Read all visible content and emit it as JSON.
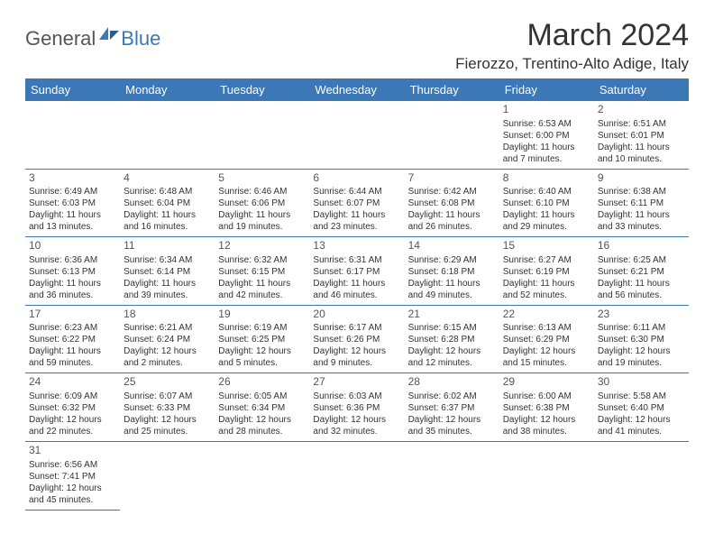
{
  "logo": {
    "part1": "General",
    "part2": "Blue"
  },
  "title": "March 2024",
  "location": "Fierozzo, Trentino-Alto Adige, Italy",
  "colors": {
    "headerBg": "#3b78b5",
    "headerText": "#ffffff",
    "border": "#3b78b5",
    "text": "#333333"
  },
  "dayHeaders": [
    "Sunday",
    "Monday",
    "Tuesday",
    "Wednesday",
    "Thursday",
    "Friday",
    "Saturday"
  ],
  "weeks": [
    [
      null,
      null,
      null,
      null,
      null,
      {
        "n": "1",
        "sr": "Sunrise: 6:53 AM",
        "ss": "Sunset: 6:00 PM",
        "d1": "Daylight: 11 hours",
        "d2": "and 7 minutes."
      },
      {
        "n": "2",
        "sr": "Sunrise: 6:51 AM",
        "ss": "Sunset: 6:01 PM",
        "d1": "Daylight: 11 hours",
        "d2": "and 10 minutes."
      }
    ],
    [
      {
        "n": "3",
        "sr": "Sunrise: 6:49 AM",
        "ss": "Sunset: 6:03 PM",
        "d1": "Daylight: 11 hours",
        "d2": "and 13 minutes."
      },
      {
        "n": "4",
        "sr": "Sunrise: 6:48 AM",
        "ss": "Sunset: 6:04 PM",
        "d1": "Daylight: 11 hours",
        "d2": "and 16 minutes."
      },
      {
        "n": "5",
        "sr": "Sunrise: 6:46 AM",
        "ss": "Sunset: 6:06 PM",
        "d1": "Daylight: 11 hours",
        "d2": "and 19 minutes."
      },
      {
        "n": "6",
        "sr": "Sunrise: 6:44 AM",
        "ss": "Sunset: 6:07 PM",
        "d1": "Daylight: 11 hours",
        "d2": "and 23 minutes."
      },
      {
        "n": "7",
        "sr": "Sunrise: 6:42 AM",
        "ss": "Sunset: 6:08 PM",
        "d1": "Daylight: 11 hours",
        "d2": "and 26 minutes."
      },
      {
        "n": "8",
        "sr": "Sunrise: 6:40 AM",
        "ss": "Sunset: 6:10 PM",
        "d1": "Daylight: 11 hours",
        "d2": "and 29 minutes."
      },
      {
        "n": "9",
        "sr": "Sunrise: 6:38 AM",
        "ss": "Sunset: 6:11 PM",
        "d1": "Daylight: 11 hours",
        "d2": "and 33 minutes."
      }
    ],
    [
      {
        "n": "10",
        "sr": "Sunrise: 6:36 AM",
        "ss": "Sunset: 6:13 PM",
        "d1": "Daylight: 11 hours",
        "d2": "and 36 minutes."
      },
      {
        "n": "11",
        "sr": "Sunrise: 6:34 AM",
        "ss": "Sunset: 6:14 PM",
        "d1": "Daylight: 11 hours",
        "d2": "and 39 minutes."
      },
      {
        "n": "12",
        "sr": "Sunrise: 6:32 AM",
        "ss": "Sunset: 6:15 PM",
        "d1": "Daylight: 11 hours",
        "d2": "and 42 minutes."
      },
      {
        "n": "13",
        "sr": "Sunrise: 6:31 AM",
        "ss": "Sunset: 6:17 PM",
        "d1": "Daylight: 11 hours",
        "d2": "and 46 minutes."
      },
      {
        "n": "14",
        "sr": "Sunrise: 6:29 AM",
        "ss": "Sunset: 6:18 PM",
        "d1": "Daylight: 11 hours",
        "d2": "and 49 minutes."
      },
      {
        "n": "15",
        "sr": "Sunrise: 6:27 AM",
        "ss": "Sunset: 6:19 PM",
        "d1": "Daylight: 11 hours",
        "d2": "and 52 minutes."
      },
      {
        "n": "16",
        "sr": "Sunrise: 6:25 AM",
        "ss": "Sunset: 6:21 PM",
        "d1": "Daylight: 11 hours",
        "d2": "and 56 minutes."
      }
    ],
    [
      {
        "n": "17",
        "sr": "Sunrise: 6:23 AM",
        "ss": "Sunset: 6:22 PM",
        "d1": "Daylight: 11 hours",
        "d2": "and 59 minutes."
      },
      {
        "n": "18",
        "sr": "Sunrise: 6:21 AM",
        "ss": "Sunset: 6:24 PM",
        "d1": "Daylight: 12 hours",
        "d2": "and 2 minutes."
      },
      {
        "n": "19",
        "sr": "Sunrise: 6:19 AM",
        "ss": "Sunset: 6:25 PM",
        "d1": "Daylight: 12 hours",
        "d2": "and 5 minutes."
      },
      {
        "n": "20",
        "sr": "Sunrise: 6:17 AM",
        "ss": "Sunset: 6:26 PM",
        "d1": "Daylight: 12 hours",
        "d2": "and 9 minutes."
      },
      {
        "n": "21",
        "sr": "Sunrise: 6:15 AM",
        "ss": "Sunset: 6:28 PM",
        "d1": "Daylight: 12 hours",
        "d2": "and 12 minutes."
      },
      {
        "n": "22",
        "sr": "Sunrise: 6:13 AM",
        "ss": "Sunset: 6:29 PM",
        "d1": "Daylight: 12 hours",
        "d2": "and 15 minutes."
      },
      {
        "n": "23",
        "sr": "Sunrise: 6:11 AM",
        "ss": "Sunset: 6:30 PM",
        "d1": "Daylight: 12 hours",
        "d2": "and 19 minutes."
      }
    ],
    [
      {
        "n": "24",
        "sr": "Sunrise: 6:09 AM",
        "ss": "Sunset: 6:32 PM",
        "d1": "Daylight: 12 hours",
        "d2": "and 22 minutes."
      },
      {
        "n": "25",
        "sr": "Sunrise: 6:07 AM",
        "ss": "Sunset: 6:33 PM",
        "d1": "Daylight: 12 hours",
        "d2": "and 25 minutes."
      },
      {
        "n": "26",
        "sr": "Sunrise: 6:05 AM",
        "ss": "Sunset: 6:34 PM",
        "d1": "Daylight: 12 hours",
        "d2": "and 28 minutes."
      },
      {
        "n": "27",
        "sr": "Sunrise: 6:03 AM",
        "ss": "Sunset: 6:36 PM",
        "d1": "Daylight: 12 hours",
        "d2": "and 32 minutes."
      },
      {
        "n": "28",
        "sr": "Sunrise: 6:02 AM",
        "ss": "Sunset: 6:37 PM",
        "d1": "Daylight: 12 hours",
        "d2": "and 35 minutes."
      },
      {
        "n": "29",
        "sr": "Sunrise: 6:00 AM",
        "ss": "Sunset: 6:38 PM",
        "d1": "Daylight: 12 hours",
        "d2": "and 38 minutes."
      },
      {
        "n": "30",
        "sr": "Sunrise: 5:58 AM",
        "ss": "Sunset: 6:40 PM",
        "d1": "Daylight: 12 hours",
        "d2": "and 41 minutes."
      }
    ],
    [
      {
        "n": "31",
        "sr": "Sunrise: 6:56 AM",
        "ss": "Sunset: 7:41 PM",
        "d1": "Daylight: 12 hours",
        "d2": "and 45 minutes."
      },
      null,
      null,
      null,
      null,
      null,
      null
    ]
  ]
}
